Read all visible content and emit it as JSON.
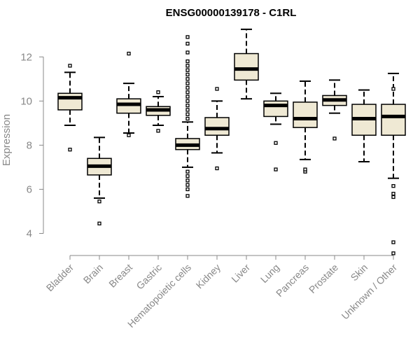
{
  "chart_data": {
    "type": "boxplot",
    "title": "ENSG00000139178 - C1RL",
    "ylabel": "Expression",
    "xlabel": "",
    "ylim": [
      3.0,
      13.5
    ],
    "yticks": [
      4,
      6,
      8,
      10,
      12
    ],
    "grid": false,
    "legend": "none",
    "box_fill": "#efe9d4",
    "box_stroke": "#000000",
    "axis_color": "#888888",
    "categories": [
      "Bladder",
      "Brain",
      "Breast",
      "Gastric",
      "Hematopoietic cells",
      "Kidney",
      "Liver",
      "Lung",
      "Pancreas",
      "Prostate",
      "Skin",
      "Unknown / Other"
    ],
    "boxes": [
      {
        "category": "Bladder",
        "whisker_low": 8.9,
        "q1": 9.6,
        "median": 10.15,
        "q3": 10.35,
        "whisker_high": 11.3,
        "outliers": [
          7.8,
          11.6
        ]
      },
      {
        "category": "Brain",
        "whisker_low": 5.6,
        "q1": 6.65,
        "median": 7.05,
        "q3": 7.4,
        "whisker_high": 8.35,
        "outliers": [
          4.45,
          5.45
        ]
      },
      {
        "category": "Breast",
        "whisker_low": 8.55,
        "q1": 9.45,
        "median": 9.85,
        "q3": 10.1,
        "whisker_high": 10.8,
        "outliers": [
          8.45,
          12.15
        ]
      },
      {
        "category": "Gastric",
        "whisker_low": 8.9,
        "q1": 9.35,
        "median": 9.6,
        "q3": 9.75,
        "whisker_high": 10.2,
        "outliers": [
          8.65,
          10.4
        ]
      },
      {
        "category": "Hematopoietic cells",
        "whisker_low": 7.0,
        "q1": 7.8,
        "median": 8.0,
        "q3": 8.3,
        "whisker_high": 9.05,
        "outliers": [
          5.7,
          6.0,
          6.2,
          6.4,
          6.6,
          6.8,
          9.2,
          9.4,
          9.6,
          9.8,
          10.0,
          10.2,
          10.4,
          10.6,
          10.8,
          11.0,
          11.2,
          11.4,
          11.6,
          11.8,
          12.2,
          12.6,
          12.9
        ]
      },
      {
        "category": "Kidney",
        "whisker_low": 7.65,
        "q1": 8.45,
        "median": 8.75,
        "q3": 9.25,
        "whisker_high": 10.0,
        "outliers": [
          6.95,
          10.55
        ]
      },
      {
        "category": "Liver",
        "whisker_low": 10.1,
        "q1": 10.95,
        "median": 11.45,
        "q3": 12.15,
        "whisker_high": 13.25,
        "outliers": []
      },
      {
        "category": "Lung",
        "whisker_low": 8.95,
        "q1": 9.3,
        "median": 9.8,
        "q3": 10.0,
        "whisker_high": 10.35,
        "outliers": [
          6.9,
          8.1
        ]
      },
      {
        "category": "Pancreas",
        "whisker_low": 7.35,
        "q1": 8.8,
        "median": 9.2,
        "q3": 9.95,
        "whisker_high": 10.9,
        "outliers": [
          6.8,
          6.9
        ]
      },
      {
        "category": "Prostate",
        "whisker_low": 9.45,
        "q1": 9.8,
        "median": 10.05,
        "q3": 10.25,
        "whisker_high": 10.95,
        "outliers": [
          8.3
        ]
      },
      {
        "category": "Skin",
        "whisker_low": 7.25,
        "q1": 8.45,
        "median": 9.2,
        "q3": 9.85,
        "whisker_high": 10.5,
        "outliers": []
      },
      {
        "category": "Unknown / Other",
        "whisker_low": 6.5,
        "q1": 8.45,
        "median": 9.3,
        "q3": 9.85,
        "whisker_high": 11.25,
        "outliers": [
          3.1,
          3.6,
          5.65,
          5.8,
          6.15,
          10.55
        ]
      }
    ]
  }
}
